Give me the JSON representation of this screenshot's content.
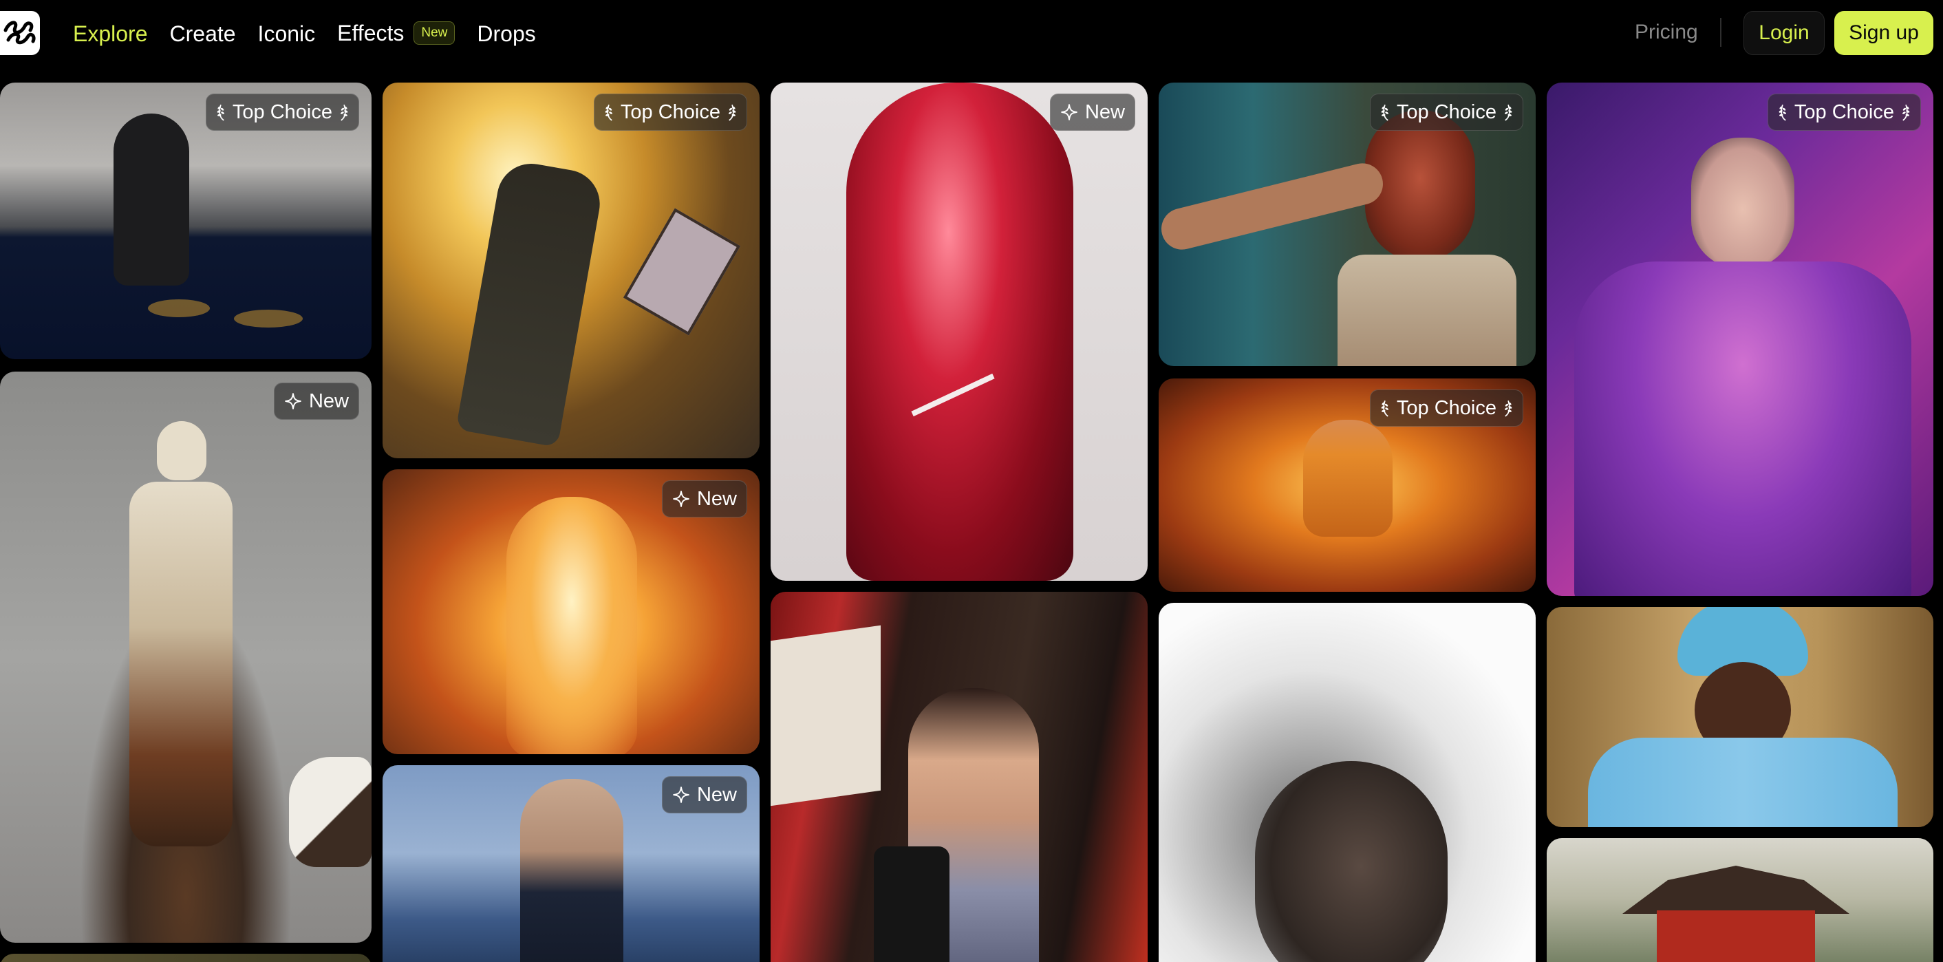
{
  "nav": {
    "logo_icon": "squiggle-logo-icon",
    "items": [
      {
        "label": "Explore",
        "active": true
      },
      {
        "label": "Create",
        "active": false
      },
      {
        "label": "Iconic",
        "active": false
      },
      {
        "label": "Effects",
        "active": false,
        "badge": "New"
      },
      {
        "label": "Drops",
        "active": false
      }
    ],
    "pricing": "Pricing",
    "login": "Login",
    "signup": "Sign up"
  },
  "colors": {
    "accent": "#d8f04e",
    "background": "#000000",
    "muted_text": "#8a8a8a"
  },
  "tag_labels": {
    "top_choice": "Top Choice",
    "new": "New"
  },
  "gallery": [
    {
      "column": 1,
      "tag": "top_choice",
      "subject": "hooded figure standing in water with fish"
    },
    {
      "column": 1,
      "tag": "new",
      "subject": "melting skeleton figure with cat"
    },
    {
      "column": 1,
      "tag": null,
      "subject": "partially visible tile"
    },
    {
      "column": 2,
      "tag": "top_choice",
      "subject": "man in suit caught in explosion"
    },
    {
      "column": 2,
      "tag": "new",
      "subject": "flaming skeleton"
    },
    {
      "column": 2,
      "tag": "new",
      "subject": "woman with glowing eyes by the sea"
    },
    {
      "column": 3,
      "tag": "new",
      "subject": "red chrome humanoid with lollipop"
    },
    {
      "column": 3,
      "tag": null,
      "subject": "girl with phone in night street"
    },
    {
      "column": 4,
      "tag": "top_choice",
      "subject": "man being punched in bathroom"
    },
    {
      "column": 4,
      "tag": "top_choice",
      "subject": "monk levitating in fire"
    },
    {
      "column": 4,
      "tag": null,
      "subject": "face disintegrating into particles"
    },
    {
      "column": 5,
      "tag": "top_choice",
      "subject": "woman in purple puffer jacket"
    },
    {
      "column": 5,
      "tag": null,
      "subject": "smiling man in blue fur outfit"
    },
    {
      "column": 5,
      "tag": null,
      "subject": "red pagoda on hill"
    }
  ]
}
